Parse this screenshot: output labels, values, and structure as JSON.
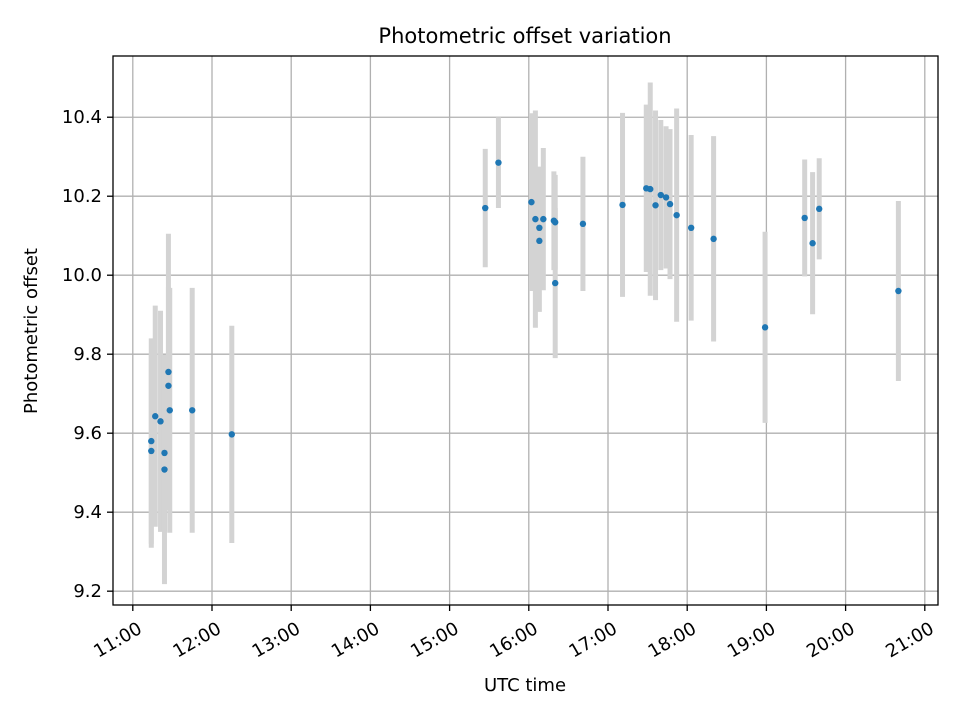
{
  "chart_data": {
    "type": "scatter",
    "title": "Photometric offset variation",
    "xlabel": "UTC time",
    "ylabel": "Photometric offset",
    "x_axis_kind": "time",
    "xlim": [
      "10:45",
      "21:10"
    ],
    "ylim": [
      9.165,
      10.555
    ],
    "x_ticks": [
      "11:00",
      "12:00",
      "13:00",
      "14:00",
      "15:00",
      "16:00",
      "17:00",
      "18:00",
      "19:00",
      "20:00",
      "21:00"
    ],
    "y_ticks": [
      "9.2",
      "9.4",
      "9.6",
      "9.8",
      "10.0",
      "10.2",
      "10.4"
    ],
    "grid": true,
    "legend": "none",
    "marker_color": "#1f77b4",
    "errorbar_color": "#d3d3d3",
    "points": [
      {
        "x": "11:14",
        "y": 9.58,
        "yerr": 0.26
      },
      {
        "x": "11:14",
        "y": 9.555,
        "yerr": 0.245
      },
      {
        "x": "11:17",
        "y": 9.643,
        "yerr": 0.28
      },
      {
        "x": "11:21",
        "y": 9.63,
        "yerr": 0.28
      },
      {
        "x": "11:24",
        "y": 9.55,
        "yerr": 0.2
      },
      {
        "x": "11:24",
        "y": 9.508,
        "yerr": 0.29
      },
      {
        "x": "11:27",
        "y": 9.755,
        "yerr": 0.35
      },
      {
        "x": "11:27",
        "y": 9.72,
        "yerr": 0.25
      },
      {
        "x": "11:28",
        "y": 9.658,
        "yerr": 0.31
      },
      {
        "x": "11:45",
        "y": 9.658,
        "yerr": 0.31
      },
      {
        "x": "12:15",
        "y": 9.597,
        "yerr": 0.275
      },
      {
        "x": "15:27",
        "y": 10.17,
        "yerr": 0.15
      },
      {
        "x": "15:37",
        "y": 10.285,
        "yerr": 0.115
      },
      {
        "x": "16:02",
        "y": 10.185,
        "yerr": 0.225
      },
      {
        "x": "16:05",
        "y": 10.142,
        "yerr": 0.275
      },
      {
        "x": "16:08",
        "y": 10.12,
        "yerr": 0.155
      },
      {
        "x": "16:08",
        "y": 10.087,
        "yerr": 0.18
      },
      {
        "x": "16:11",
        "y": 10.142,
        "yerr": 0.18
      },
      {
        "x": "16:19",
        "y": 10.138,
        "yerr": 0.125
      },
      {
        "x": "16:20",
        "y": 10.134,
        "yerr": 0.12
      },
      {
        "x": "16:20",
        "y": 9.98,
        "yerr": 0.19
      },
      {
        "x": "16:41",
        "y": 10.13,
        "yerr": 0.17
      },
      {
        "x": "17:11",
        "y": 10.178,
        "yerr": 0.233
      },
      {
        "x": "17:29",
        "y": 10.22,
        "yerr": 0.212
      },
      {
        "x": "17:32",
        "y": 10.218,
        "yerr": 0.27
      },
      {
        "x": "17:36",
        "y": 10.177,
        "yerr": 0.24
      },
      {
        "x": "17:40",
        "y": 10.203,
        "yerr": 0.19
      },
      {
        "x": "17:44",
        "y": 10.197,
        "yerr": 0.18
      },
      {
        "x": "17:47",
        "y": 10.18,
        "yerr": 0.19
      },
      {
        "x": "17:52",
        "y": 10.152,
        "yerr": 0.27
      },
      {
        "x": "18:03",
        "y": 10.12,
        "yerr": 0.235
      },
      {
        "x": "18:20",
        "y": 10.092,
        "yerr": 0.26
      },
      {
        "x": "18:59",
        "y": 9.868,
        "yerr": 0.242
      },
      {
        "x": "19:29",
        "y": 10.145,
        "yerr": 0.148
      },
      {
        "x": "19:35",
        "y": 10.081,
        "yerr": 0.18
      },
      {
        "x": "19:40",
        "y": 10.168,
        "yerr": 0.128
      },
      {
        "x": "20:40",
        "y": 9.96,
        "yerr": 0.228
      }
    ]
  }
}
